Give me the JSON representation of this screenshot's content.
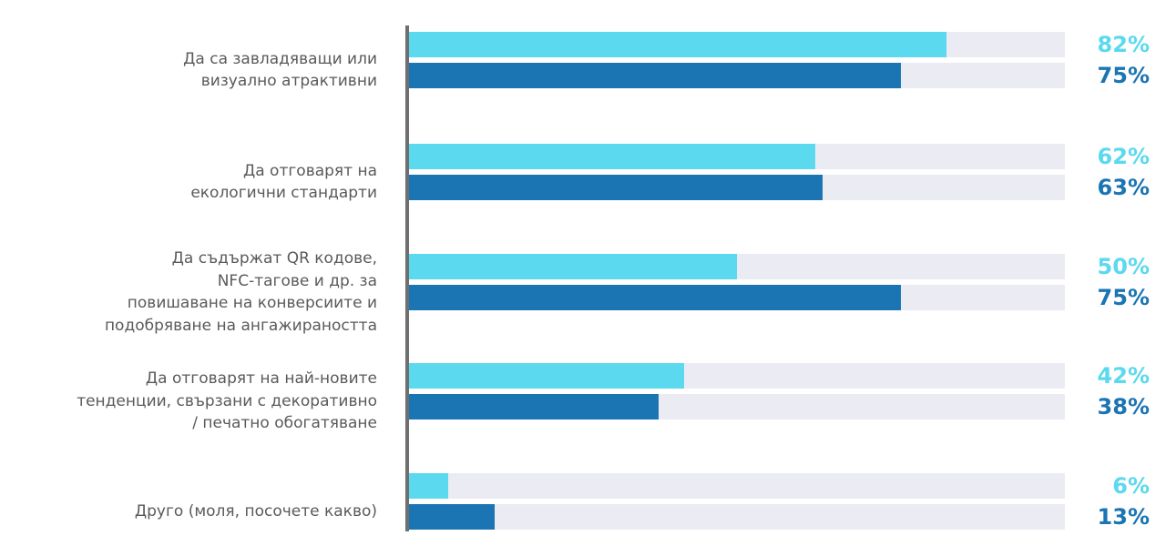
{
  "chart_data": {
    "type": "bar",
    "orientation": "horizontal",
    "categories": [
      "Да са завладяващи или\nвизуално атрактивни",
      "Да отговарят на\nекологични стандарти",
      "Да съдържат QR кодове,\nNFC-тагове и др. за\nповишаване на конверсиите и\nподобряване на ангажираността",
      "Да отговарят на най-новите\nтенденции, свързани с декоративно\n/ печатно обогатяване",
      "Друго (моля, посочете какво)"
    ],
    "series": [
      {
        "values": [
          82,
          62,
          50,
          42,
          6
        ],
        "labels": [
          "82%",
          "62%",
          "50%",
          "42%",
          "6%"
        ],
        "color": "#5bd9ee"
      },
      {
        "values": [
          75,
          63,
          75,
          38,
          13
        ],
        "labels": [
          "75%",
          "63%",
          "75%",
          "38%",
          "13%"
        ],
        "color": "#1b75b3"
      }
    ],
    "xlim": [
      0,
      100
    ],
    "grid": false,
    "legend": "none",
    "track_color": "#ebebf3",
    "axis_color": "#6f6f6f",
    "label_color": "#5a5a5a"
  }
}
